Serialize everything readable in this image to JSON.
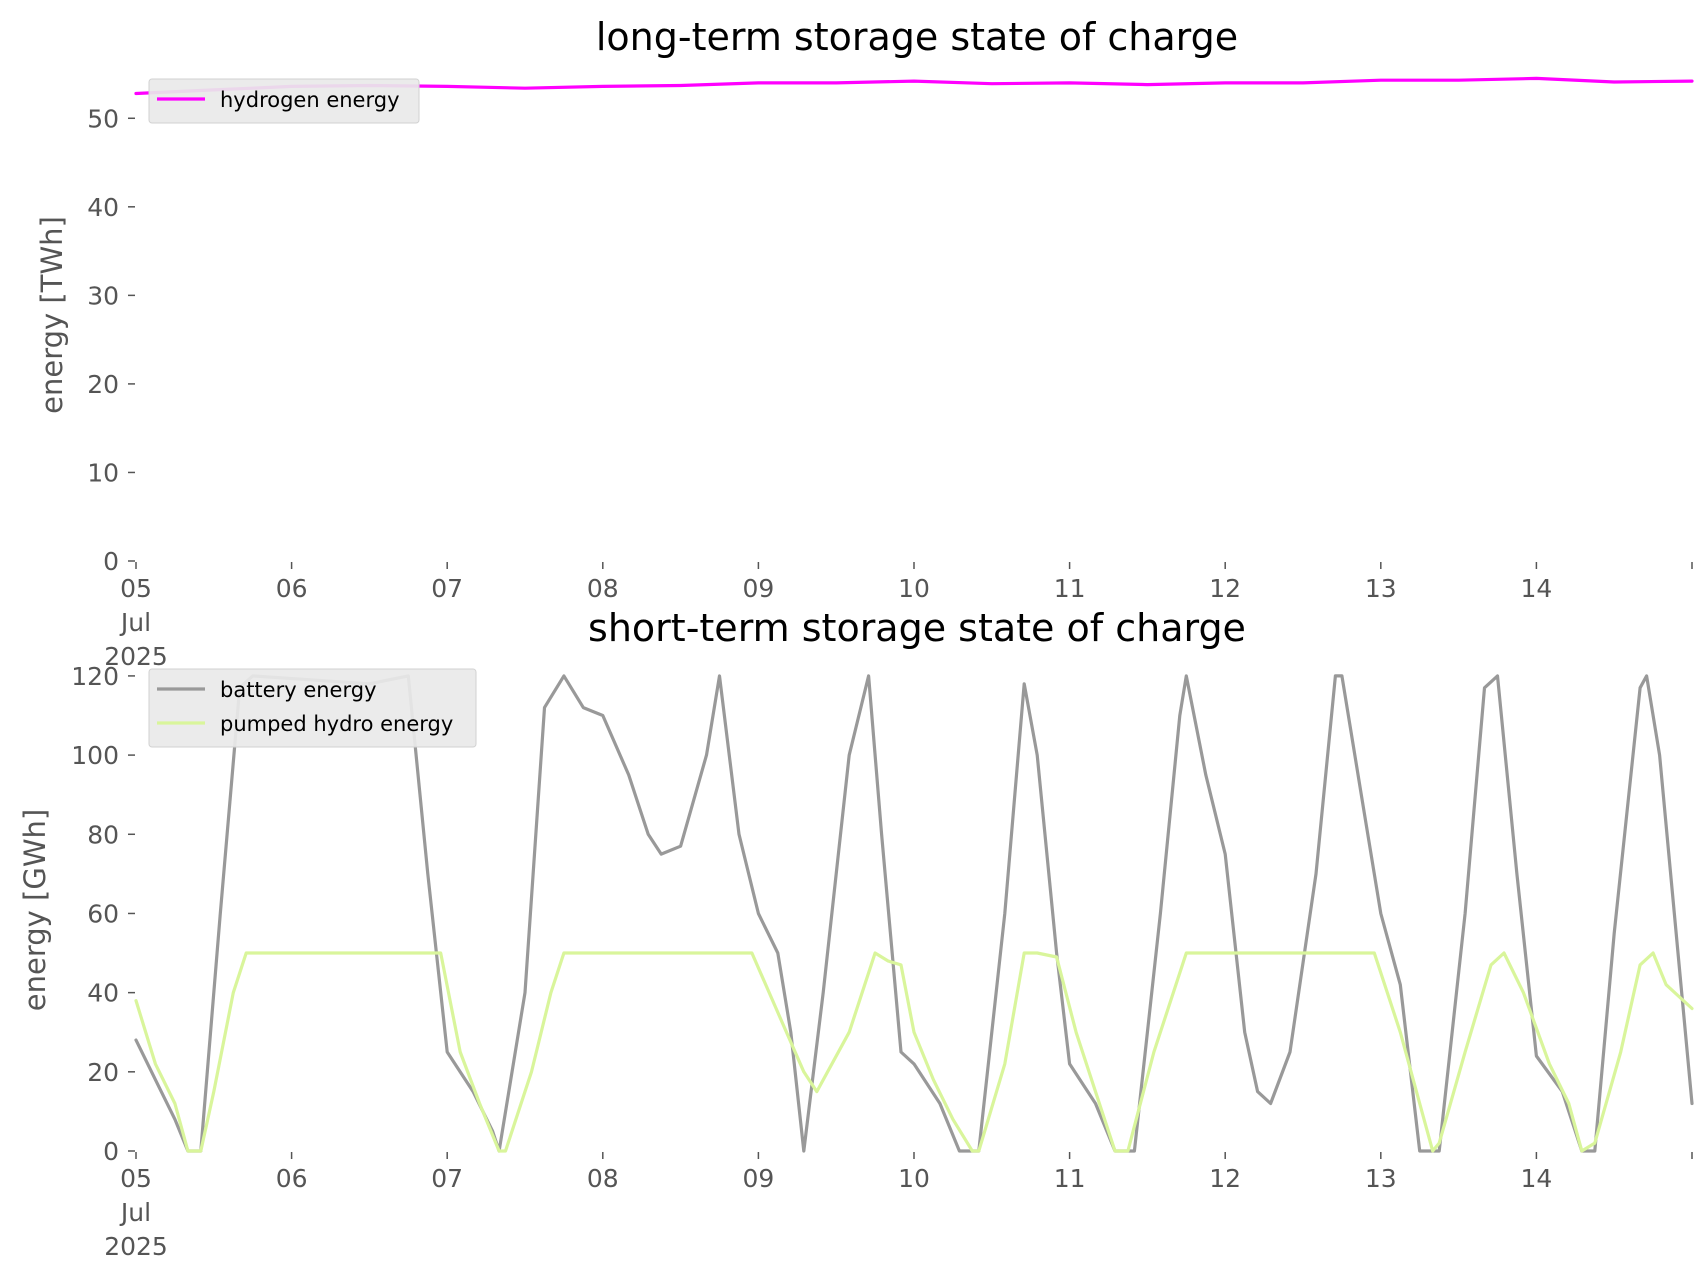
{
  "chart_data": [
    {
      "type": "line",
      "title": "long-term storage state of charge",
      "xlabel": "",
      "ylabel": "energy [TWh]",
      "ylim": [
        0,
        55
      ],
      "yticks": [
        0,
        10,
        20,
        30,
        40,
        50
      ],
      "xlim": [
        "2025-07-05",
        "2025-07-15"
      ],
      "xtick_labels": [
        {
          "x": "2025-07-05",
          "label": "05\nJul\n2025"
        },
        {
          "x": "2025-07-06",
          "label": "06"
        },
        {
          "x": "2025-07-07",
          "label": "07"
        },
        {
          "x": "2025-07-08",
          "label": "08"
        },
        {
          "x": "2025-07-09",
          "label": "09"
        },
        {
          "x": "2025-07-10",
          "label": "10"
        },
        {
          "x": "2025-07-11",
          "label": "11"
        },
        {
          "x": "2025-07-12",
          "label": "12"
        },
        {
          "x": "2025-07-13",
          "label": "13"
        },
        {
          "x": "2025-07-14",
          "label": "14"
        }
      ],
      "grid": false,
      "legend": "top-left",
      "series": [
        {
          "name": "hydrogen energy",
          "color": "#ff00ff",
          "x": [
            "2025-07-05 00:00",
            "2025-07-05 12:00",
            "2025-07-06 00:00",
            "2025-07-06 12:00",
            "2025-07-07 00:00",
            "2025-07-07 12:00",
            "2025-07-08 00:00",
            "2025-07-08 12:00",
            "2025-07-09 00:00",
            "2025-07-09 12:00",
            "2025-07-10 00:00",
            "2025-07-10 12:00",
            "2025-07-11 00:00",
            "2025-07-11 12:00",
            "2025-07-12 00:00",
            "2025-07-12 12:00",
            "2025-07-13 00:00",
            "2025-07-13 12:00",
            "2025-07-14 00:00",
            "2025-07-14 12:00",
            "2025-07-15 00:00"
          ],
          "y": [
            52.8,
            53.2,
            53.6,
            53.7,
            53.6,
            53.4,
            53.6,
            53.7,
            54.0,
            54.0,
            54.2,
            53.9,
            54.0,
            53.8,
            54.0,
            54.0,
            54.3,
            54.3,
            54.5,
            54.1,
            54.2
          ]
        }
      ]
    },
    {
      "type": "line",
      "title": "short-term storage state of charge",
      "xlabel": "",
      "ylabel": "energy [GWh]",
      "ylim": [
        0,
        122
      ],
      "yticks": [
        0,
        20,
        40,
        60,
        80,
        100,
        120
      ],
      "xlim": [
        "2025-07-05",
        "2025-07-15"
      ],
      "xtick_labels": [
        {
          "x": "2025-07-05",
          "label": "05\nJul\n2025"
        },
        {
          "x": "2025-07-06",
          "label": "06"
        },
        {
          "x": "2025-07-07",
          "label": "07"
        },
        {
          "x": "2025-07-08",
          "label": "08"
        },
        {
          "x": "2025-07-09",
          "label": "09"
        },
        {
          "x": "2025-07-10",
          "label": "10"
        },
        {
          "x": "2025-07-11",
          "label": "11"
        },
        {
          "x": "2025-07-12",
          "label": "12"
        },
        {
          "x": "2025-07-13",
          "label": "13"
        },
        {
          "x": "2025-07-14",
          "label": "14"
        }
      ],
      "grid": false,
      "legend": "top-left",
      "series": [
        {
          "name": "battery energy",
          "color": "#999999",
          "x": [
            "2025-07-05 00:00",
            "2025-07-05 03:00",
            "2025-07-05 06:00",
            "2025-07-05 08:00",
            "2025-07-05 10:00",
            "2025-07-05 13:00",
            "2025-07-05 16:00",
            "2025-07-05 18:00",
            "2025-07-06 12:00",
            "2025-07-06 18:00",
            "2025-07-06 21:00",
            "2025-07-07 00:00",
            "2025-07-07 04:00",
            "2025-07-07 07:00",
            "2025-07-07 08:00",
            "2025-07-07 12:00",
            "2025-07-07 15:00",
            "2025-07-07 18:00",
            "2025-07-07 21:00",
            "2025-07-08 00:00",
            "2025-07-08 04:00",
            "2025-07-08 07:00",
            "2025-07-08 09:00",
            "2025-07-08 12:00",
            "2025-07-08 16:00",
            "2025-07-08 18:00",
            "2025-07-08 21:00",
            "2025-07-09 00:00",
            "2025-07-09 03:00",
            "2025-07-09 05:00",
            "2025-07-09 07:00",
            "2025-07-09 10:00",
            "2025-07-09 14:00",
            "2025-07-09 17:00",
            "2025-07-09 19:00",
            "2025-07-09 22:00",
            "2025-07-10 00:00",
            "2025-07-10 04:00",
            "2025-07-10 07:00",
            "2025-07-10 10:00",
            "2025-07-10 14:00",
            "2025-07-10 17:00",
            "2025-07-10 19:00",
            "2025-07-10 22:00",
            "2025-07-11 00:00",
            "2025-07-11 04:00",
            "2025-07-11 07:00",
            "2025-07-11 10:00",
            "2025-07-11 14:00",
            "2025-07-11 17:00",
            "2025-07-11 18:00",
            "2025-07-11 21:00",
            "2025-07-12 00:00",
            "2025-07-12 03:00",
            "2025-07-12 05:00",
            "2025-07-12 07:00",
            "2025-07-12 10:00",
            "2025-07-12 14:00",
            "2025-07-12 17:00",
            "2025-07-12 18:00",
            "2025-07-12 21:00",
            "2025-07-13 00:00",
            "2025-07-13 03:00",
            "2025-07-13 06:00",
            "2025-07-13 09:00",
            "2025-07-13 13:00",
            "2025-07-13 16:00",
            "2025-07-13 18:00",
            "2025-07-13 21:00",
            "2025-07-14 00:00",
            "2025-07-14 04:00",
            "2025-07-14 07:00",
            "2025-07-14 09:00",
            "2025-07-14 12:00",
            "2025-07-14 16:00",
            "2025-07-14 17:00",
            "2025-07-14 19:00",
            "2025-07-15 00:00"
          ],
          "y": [
            28,
            18,
            8,
            0,
            0,
            60,
            117,
            120,
            118,
            120,
            70,
            25,
            15,
            5,
            0,
            40,
            112,
            120,
            112,
            110,
            95,
            80,
            75,
            77,
            100,
            120,
            80,
            60,
            50,
            30,
            0,
            40,
            100,
            120,
            80,
            25,
            22,
            12,
            0,
            0,
            60,
            118,
            100,
            50,
            22,
            12,
            0,
            0,
            60,
            110,
            120,
            95,
            75,
            30,
            15,
            12,
            25,
            70,
            120,
            120,
            90,
            60,
            42,
            0,
            0,
            60,
            117,
            120,
            70,
            24,
            15,
            0,
            0,
            55,
            117,
            120,
            100,
            12
          ]
        },
        {
          "name": "pumped hydro energy",
          "color": "#d9f59b",
          "x": [
            "2025-07-05 00:00",
            "2025-07-05 03:00",
            "2025-07-05 06:00",
            "2025-07-05 08:00",
            "2025-07-05 10:00",
            "2025-07-05 12:00",
            "2025-07-05 15:00",
            "2025-07-05 17:00",
            "2025-07-06 20:00",
            "2025-07-06 23:00",
            "2025-07-07 02:00",
            "2025-07-07 05:00",
            "2025-07-07 08:00",
            "2025-07-07 09:00",
            "2025-07-07 13:00",
            "2025-07-07 16:00",
            "2025-07-07 18:00",
            "2025-07-08 23:00",
            "2025-07-09 03:00",
            "2025-07-09 07:00",
            "2025-07-09 09:00",
            "2025-07-09 14:00",
            "2025-07-09 18:00",
            "2025-07-09 20:00",
            "2025-07-09 22:00",
            "2025-07-10 00:00",
            "2025-07-10 03:00",
            "2025-07-10 06:00",
            "2025-07-10 09:00",
            "2025-07-10 10:00",
            "2025-07-10 14:00",
            "2025-07-10 17:00",
            "2025-07-10 19:00",
            "2025-07-10 22:00",
            "2025-07-11 01:00",
            "2025-07-11 04:00",
            "2025-07-11 07:00",
            "2025-07-11 09:00",
            "2025-07-11 13:00",
            "2025-07-11 18:00",
            "2025-07-12 23:00",
            "2025-07-13 03:00",
            "2025-07-13 06:00",
            "2025-07-13 08:00",
            "2025-07-13 09:00",
            "2025-07-13 13:00",
            "2025-07-13 17:00",
            "2025-07-13 19:00",
            "2025-07-13 22:00",
            "2025-07-14 02:00",
            "2025-07-14 05:00",
            "2025-07-14 07:00",
            "2025-07-14 09:00",
            "2025-07-14 13:00",
            "2025-07-14 16:00",
            "2025-07-14 18:00",
            "2025-07-14 20:00",
            "2025-07-15 00:00"
          ],
          "y": [
            38,
            22,
            12,
            0,
            0,
            15,
            40,
            50,
            50,
            50,
            25,
            12,
            0,
            0,
            20,
            40,
            50,
            50,
            35,
            20,
            15,
            30,
            50,
            48,
            47,
            30,
            18,
            8,
            0,
            0,
            22,
            50,
            50,
            49,
            30,
            15,
            0,
            0,
            25,
            50,
            50,
            30,
            12,
            0,
            2,
            25,
            47,
            50,
            40,
            22,
            12,
            0,
            2,
            25,
            47,
            50,
            42,
            36
          ]
        }
      ]
    }
  ]
}
